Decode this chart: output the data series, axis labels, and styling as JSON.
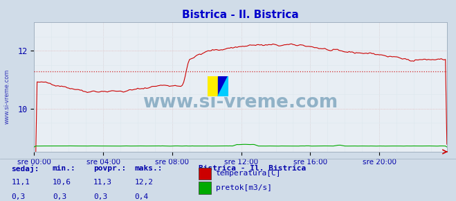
{
  "title": "Bistrica - Il. Bistrica",
  "title_color": "#0000cc",
  "bg_color": "#d0dce8",
  "plot_bg_color": "#e8eef4",
  "grid_color": "#c8d4e0",
  "temp_color": "#cc0000",
  "flow_color": "#00aa00",
  "avg_line_color": "#cc0000",
  "xlim": [
    0,
    287
  ],
  "yticks_temp": [
    10,
    12
  ],
  "xtick_labels": [
    "sre 00:00",
    "sre 04:00",
    "sre 08:00",
    "sre 12:00",
    "sre 16:00",
    "sre 20:00"
  ],
  "xtick_positions": [
    0,
    48,
    96,
    144,
    192,
    240
  ],
  "watermark": "www.si-vreme.com",
  "watermark_color": "#1a5f8a",
  "ylabel_text": "www.si-vreme.com",
  "stats_headers": [
    "sedaj:",
    "min.:",
    "povpr.:",
    "maks.:"
  ],
  "stats_temp": [
    "11,1",
    "10,6",
    "11,3",
    "12,2"
  ],
  "stats_flow": [
    "0,3",
    "0,3",
    "0,3",
    "0,4"
  ],
  "legend_title": "Bistrica - Il. Bistrica",
  "legend_items": [
    "temperatura[C]",
    "pretok[m3/s]"
  ],
  "legend_colors": [
    "#cc0000",
    "#00aa00"
  ],
  "temp_avg": 11.3,
  "text_color": "#0000aa",
  "ymin": 8.5,
  "ymax": 13.0
}
